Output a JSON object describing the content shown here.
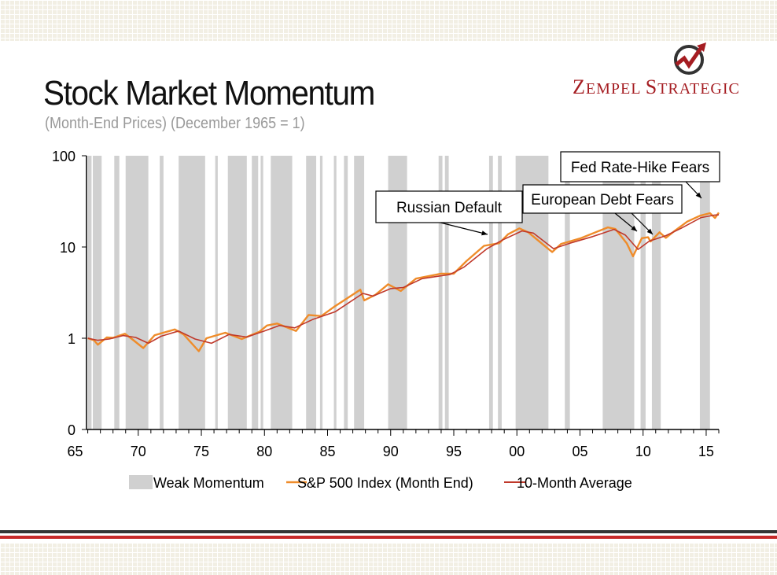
{
  "header": {
    "title": "Stock Market Momentum",
    "subtitle": "(Month-End Prices) (December 1965 = 1)",
    "brand_cap_1": "Z",
    "brand_rest_1": "EMPEL ",
    "brand_cap_2": "S",
    "brand_rest_2": "TRATEGIC"
  },
  "colors": {
    "sp500": "#ef8c2a",
    "avg": "#c0392b",
    "shade": "#d0d0d0",
    "brand": "#a51d22",
    "rule_dark": "#333333",
    "rule_red": "#c62828"
  },
  "chart_data": {
    "type": "line",
    "y_scale": "log",
    "y_ticks": [
      "0",
      "1",
      "10",
      "100"
    ],
    "x_ticks": [
      "65",
      "70",
      "75",
      "80",
      "85",
      "90",
      "95",
      "00",
      "05",
      "10",
      "15"
    ],
    "x_range": [
      1965.9,
      2016.0
    ],
    "weak_momentum_periods": [
      [
        1966.0,
        1966.3
      ],
      [
        1966.4,
        1967.1
      ],
      [
        1968.1,
        1968.5
      ],
      [
        1969.0,
        1970.8
      ],
      [
        1971.7,
        1972.0
      ],
      [
        1973.2,
        1975.3
      ],
      [
        1976.1,
        1976.3
      ],
      [
        1977.1,
        1978.6
      ],
      [
        1979.0,
        1979.5
      ],
      [
        1979.7,
        1979.9
      ],
      [
        1980.5,
        1982.2
      ],
      [
        1983.3,
        1984.1
      ],
      [
        1984.4,
        1984.6
      ],
      [
        1985.5,
        1985.7
      ],
      [
        1986.3,
        1986.6
      ],
      [
        1987.1,
        1987.9
      ],
      [
        1989.8,
        1991.3
      ],
      [
        1993.8,
        1994.1
      ],
      [
        1994.3,
        1994.6
      ],
      [
        1997.8,
        1998.1
      ],
      [
        1998.5,
        1998.8
      ],
      [
        1999.9,
        2002.5
      ],
      [
        2003.8,
        2004.2
      ],
      [
        2006.8,
        2009.3
      ],
      [
        2009.8,
        2010.2
      ],
      [
        2010.7,
        2011.4
      ],
      [
        2014.5,
        2015.3
      ]
    ],
    "series": [
      {
        "name": "S&P 500 Index (Month End)",
        "points": [
          [
            1966.0,
            1.0
          ],
          [
            1966.5,
            0.95
          ],
          [
            1966.8,
            0.85
          ],
          [
            1967.5,
            1.02
          ],
          [
            1968.0,
            1.01
          ],
          [
            1968.6,
            1.08
          ],
          [
            1968.95,
            1.12
          ],
          [
            1969.5,
            0.98
          ],
          [
            1970.4,
            0.78
          ],
          [
            1971.3,
            1.08
          ],
          [
            1972.9,
            1.25
          ],
          [
            1973.6,
            1.1
          ],
          [
            1974.8,
            0.72
          ],
          [
            1975.4,
            1.0
          ],
          [
            1976.9,
            1.15
          ],
          [
            1978.2,
            0.98
          ],
          [
            1979.6,
            1.18
          ],
          [
            1980.2,
            1.38
          ],
          [
            1981.0,
            1.45
          ],
          [
            1982.5,
            1.2
          ],
          [
            1983.5,
            1.8
          ],
          [
            1984.5,
            1.75
          ],
          [
            1985.5,
            2.2
          ],
          [
            1987.6,
            3.4
          ],
          [
            1987.9,
            2.6
          ],
          [
            1988.8,
            3.0
          ],
          [
            1989.8,
            3.9
          ],
          [
            1990.8,
            3.3
          ],
          [
            1992.0,
            4.5
          ],
          [
            1994.0,
            5.1
          ],
          [
            1995.0,
            5.1
          ],
          [
            1996.0,
            7.0
          ],
          [
            1997.4,
            10.3
          ],
          [
            1998.6,
            11.0
          ],
          [
            1999.3,
            13.8
          ],
          [
            2000.2,
            16.0
          ],
          [
            2000.9,
            14.5
          ],
          [
            2002.5,
            9.5
          ],
          [
            2002.8,
            8.8
          ],
          [
            2003.5,
            10.8
          ],
          [
            2005.0,
            12.4
          ],
          [
            2007.2,
            16.4
          ],
          [
            2007.8,
            15.8
          ],
          [
            2008.7,
            11.0
          ],
          [
            2009.2,
            7.9
          ],
          [
            2009.9,
            12.5
          ],
          [
            2010.4,
            12.8
          ],
          [
            2010.6,
            11.5
          ],
          [
            2011.3,
            14.5
          ],
          [
            2011.8,
            12.6
          ],
          [
            2012.5,
            15.0
          ],
          [
            2013.5,
            19.0
          ],
          [
            2014.5,
            22.0
          ],
          [
            2015.3,
            23.5
          ],
          [
            2015.7,
            20.8
          ],
          [
            2016.0,
            23.8
          ]
        ]
      },
      {
        "name": "10-Month Average",
        "points": [
          [
            1966.0,
            1.0
          ],
          [
            1966.8,
            0.95
          ],
          [
            1967.7,
            0.98
          ],
          [
            1968.8,
            1.07
          ],
          [
            1969.8,
            1.02
          ],
          [
            1970.8,
            0.88
          ],
          [
            1971.8,
            1.05
          ],
          [
            1973.2,
            1.2
          ],
          [
            1974.5,
            0.98
          ],
          [
            1975.8,
            0.88
          ],
          [
            1977.2,
            1.1
          ],
          [
            1978.6,
            1.03
          ],
          [
            1980.0,
            1.2
          ],
          [
            1981.2,
            1.38
          ],
          [
            1982.4,
            1.3
          ],
          [
            1983.8,
            1.6
          ],
          [
            1985.6,
            1.95
          ],
          [
            1987.8,
            3.1
          ],
          [
            1988.6,
            2.9
          ],
          [
            1990.0,
            3.5
          ],
          [
            1991.0,
            3.6
          ],
          [
            1992.5,
            4.5
          ],
          [
            1994.7,
            5.0
          ],
          [
            1995.8,
            6.0
          ],
          [
            1997.6,
            9.5
          ],
          [
            1998.9,
            12.0
          ],
          [
            2000.4,
            15.0
          ],
          [
            2001.3,
            14.2
          ],
          [
            2002.9,
            9.6
          ],
          [
            2004.2,
            11.0
          ],
          [
            2006.0,
            13.0
          ],
          [
            2007.7,
            15.6
          ],
          [
            2008.6,
            13.5
          ],
          [
            2009.6,
            9.4
          ],
          [
            2010.5,
            11.6
          ],
          [
            2011.8,
            13.3
          ],
          [
            2013.0,
            16.0
          ],
          [
            2014.6,
            21.0
          ],
          [
            2015.6,
            22.3
          ],
          [
            2016.0,
            22.5
          ]
        ]
      }
    ],
    "annotations": [
      {
        "text": "Russian Default"
      },
      {
        "text": "European Debt Fears"
      },
      {
        "text": "Fed Rate-Hike Fears"
      }
    ],
    "legend": [
      {
        "label": "Weak Momentum"
      },
      {
        "label": "S&P 500 Index (Month End)"
      },
      {
        "label": "10-Month Average"
      }
    ]
  }
}
